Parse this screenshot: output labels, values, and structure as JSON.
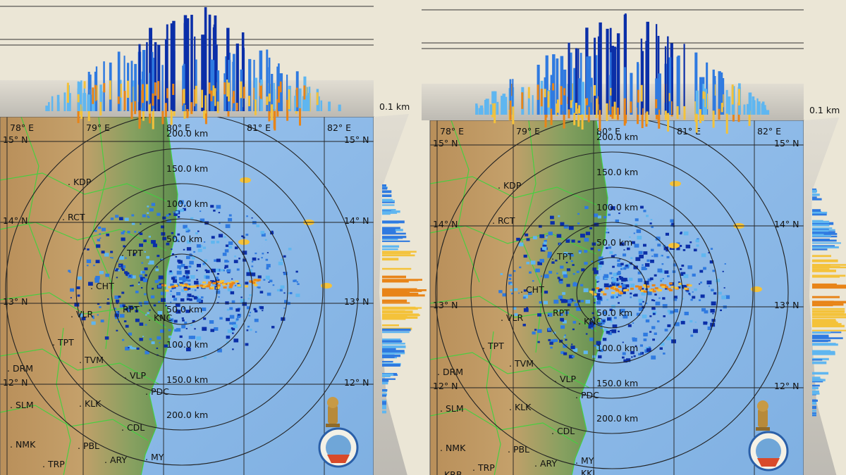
{
  "panels": [
    {
      "id": "left",
      "height_label": "0.1 km",
      "lon_labels": [
        "78° E",
        "79° E",
        "80° E",
        "81° E",
        "82° E"
      ],
      "lat_labels": [
        "15° N",
        "14° N",
        "13° N",
        "12° N"
      ],
      "lat_labels_right": [
        "15° N",
        "14° N",
        "13° N",
        "12° N"
      ],
      "range_labels": [
        "200.0 km",
        "150.0 km",
        "100.0 km",
        "50.0 km",
        "50.0 km",
        "100.0 km",
        "150.0 km",
        "200.0 km"
      ],
      "places": [
        {
          "code": "KDP"
        },
        {
          "code": "RCT"
        },
        {
          "code": "TPT"
        },
        {
          "code": "CHT"
        },
        {
          "code": "VLR"
        },
        {
          "code": "RPT"
        },
        {
          "code": "KNC"
        },
        {
          "code": "TPT"
        },
        {
          "code": "TVM"
        },
        {
          "code": "VLP"
        },
        {
          "code": "DRM"
        },
        {
          "code": "PDC"
        },
        {
          "code": "SLM"
        },
        {
          "code": "KLK"
        },
        {
          "code": "CDL"
        },
        {
          "code": "NMK"
        },
        {
          "code": "PBL"
        },
        {
          "code": "ARY"
        },
        {
          "code": "MY"
        },
        {
          "code": "TRP"
        }
      ]
    },
    {
      "id": "right",
      "height_label": "0.1 km",
      "lon_labels": [
        "78° E",
        "79° E",
        "80° E",
        "81° E",
        "82° E"
      ],
      "lat_labels": [
        "15° N",
        "14° N",
        "13° N",
        "12° N"
      ],
      "lat_labels_right": [
        "15° N",
        "14° N",
        "13° N",
        "12° N"
      ],
      "range_labels": [
        "200.0 km",
        "150.0 km",
        "100.0 km",
        "50.0 km",
        "50.0 km",
        "100.0 km",
        "150.0 km",
        "200.0 km"
      ],
      "places": [
        {
          "code": "KDP"
        },
        {
          "code": "RCT"
        },
        {
          "code": "TPT"
        },
        {
          "code": "CHT"
        },
        {
          "code": "VLR"
        },
        {
          "code": "RPT"
        },
        {
          "code": "KNC"
        },
        {
          "code": "TPT"
        },
        {
          "code": "TVM"
        },
        {
          "code": "VLP"
        },
        {
          "code": "DRM"
        },
        {
          "code": "PDC"
        },
        {
          "code": "SLM"
        },
        {
          "code": "KLK"
        },
        {
          "code": "CDL"
        },
        {
          "code": "NMK"
        },
        {
          "code": "PBL"
        },
        {
          "code": "ARY"
        },
        {
          "code": "MY"
        },
        {
          "code": "TRP"
        },
        {
          "code": "KRB"
        },
        {
          "code": "KKL"
        }
      ]
    }
  ],
  "colors": {
    "sea": "#8fb8e6",
    "land_green": "#6f9a55",
    "land_tan": "#c79a5e",
    "grid": "#222222",
    "boundary": "#3ed33e",
    "echo_dark": "#0b2fa8",
    "echo_mid": "#2f7ae0",
    "echo_light": "#5fb6f0",
    "echo_yellow": "#f4c23a",
    "echo_orange": "#e88418",
    "background": "#ebe6d6"
  },
  "icons": [
    "imd-emblem-icon",
    "imd-logo-icon"
  ]
}
